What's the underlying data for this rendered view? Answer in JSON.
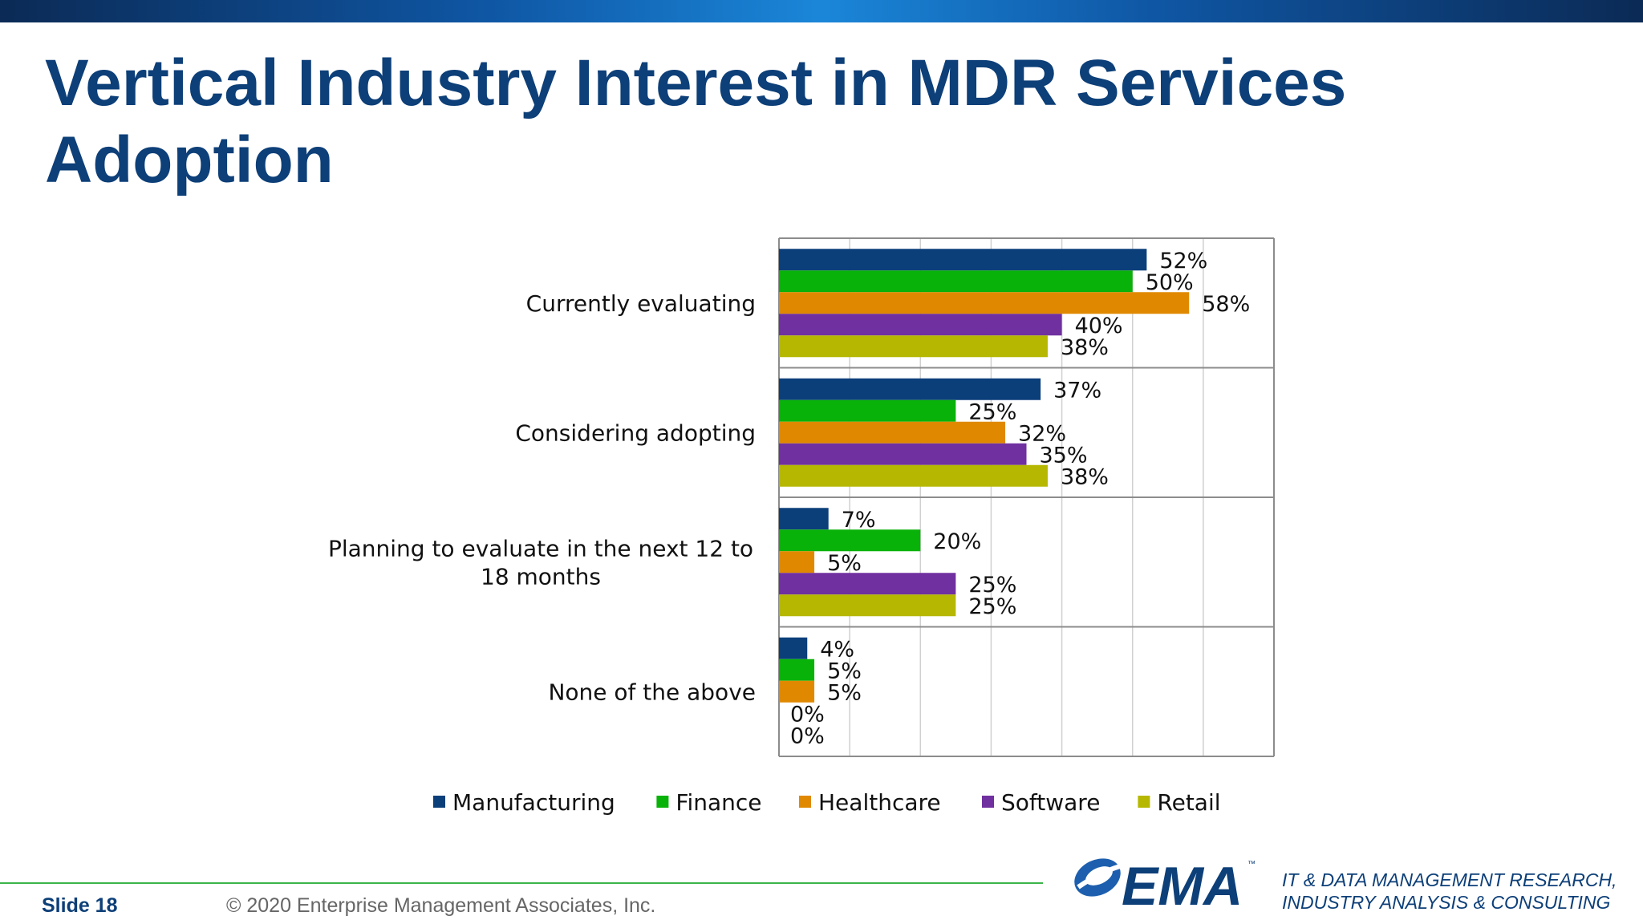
{
  "slide": {
    "title": "Vertical Industry Interest in MDR Services Adoption",
    "slide_label": "Slide  18",
    "copyright": "© 2020  Enterprise Management Associates, Inc.",
    "logo_text": "EMA",
    "logo_tm": "™",
    "tagline_line1": "IT & DATA MANAGEMENT RESEARCH,",
    "tagline_line2": "INDUSTRY ANALYSIS & CONSULTING"
  },
  "colors": {
    "brand_blue": "#0d3f78",
    "footer_green": "#3cb54a"
  },
  "chart_data": {
    "type": "bar",
    "orientation": "horizontal",
    "title": "",
    "xlabel": "",
    "ylabel": "",
    "xlim": [
      0,
      70
    ],
    "grid": true,
    "legend": "bottom",
    "value_suffix": "%",
    "categories": [
      [
        "Currently evaluating"
      ],
      [
        "Considering adopting"
      ],
      [
        "Planning to evaluate in the next 12 to",
        "18 months"
      ],
      [
        "None of the above"
      ]
    ],
    "series": [
      {
        "name": "Manufacturing",
        "color": "#0b3f7a",
        "values": [
          52,
          37,
          7,
          4
        ]
      },
      {
        "name": "Finance",
        "color": "#08b208",
        "values": [
          50,
          25,
          20,
          5
        ]
      },
      {
        "name": "Healthcare",
        "color": "#e08900",
        "values": [
          58,
          32,
          5,
          5
        ]
      },
      {
        "name": "Software",
        "color": "#7030a0",
        "values": [
          40,
          35,
          25,
          0
        ]
      },
      {
        "name": "Retail",
        "color": "#b5b700",
        "values": [
          38,
          38,
          25,
          0
        ]
      }
    ]
  }
}
